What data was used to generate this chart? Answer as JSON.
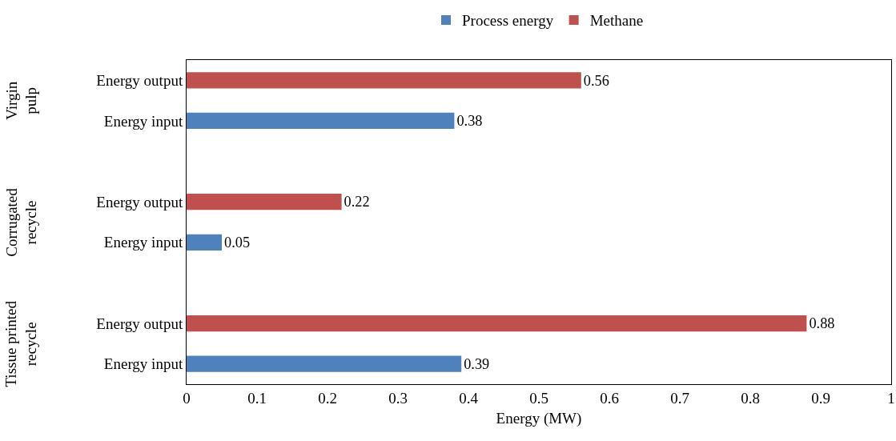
{
  "chart_data": {
    "type": "bar",
    "orientation": "horizontal",
    "xlabel": "Energy (MW)",
    "categories": [
      "Energy output",
      "Energy input",
      null,
      "Energy output",
      "Energy input",
      null,
      "Energy output",
      "Energy input"
    ],
    "series": [
      {
        "name": "Process energy",
        "color": "#4f81bd",
        "values": [
          null,
          0.38,
          null,
          null,
          0.05,
          null,
          null,
          0.39
        ]
      },
      {
        "name": "Methane",
        "color": "#c0504d",
        "values": [
          0.56,
          null,
          null,
          0.22,
          null,
          null,
          0.88,
          null
        ]
      }
    ],
    "xlim": [
      0,
      1
    ],
    "xticks": [
      0,
      0.1,
      0.2,
      0.3,
      0.4,
      0.5,
      0.6,
      0.7,
      0.8,
      0.9,
      1
    ],
    "data_labels": true,
    "grid": false,
    "legend": "top",
    "annotations": [
      "Virgin pulp",
      "Corrugated recycle",
      "Tissue printed recycle"
    ]
  }
}
